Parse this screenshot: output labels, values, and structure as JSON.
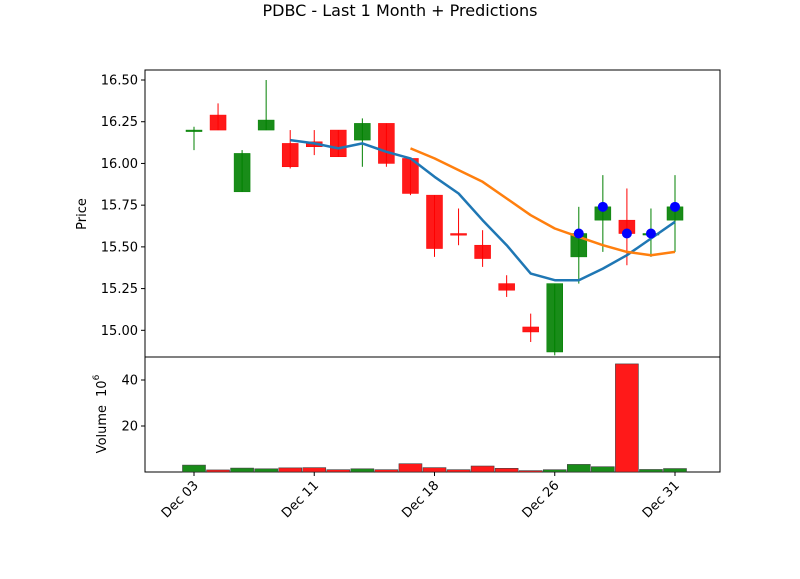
{
  "chart_data": {
    "type": "candlestick",
    "title": "PDBC - Last 1 Month + Predictions",
    "ylabel": "Price",
    "volume_label": "Volume",
    "volume_multiplier": "10",
    "volume_exponent": "6",
    "ylim": [
      14.84,
      16.56
    ],
    "volume_ylim": [
      0,
      50
    ],
    "y_ticks": [
      15.0,
      15.25,
      15.5,
      15.75,
      16.0,
      16.25,
      16.5
    ],
    "y_tick_labels": [
      "15.00",
      "15.25",
      "15.50",
      "15.75",
      "16.00",
      "16.25",
      "16.50"
    ],
    "volume_ticks": [
      20,
      40
    ],
    "volume_tick_labels": [
      "20",
      "40"
    ],
    "x_tick_labels": [
      "Dec 03",
      "Dec 11",
      "Dec 18",
      "Dec 26",
      "Dec 31"
    ],
    "x_tick_index": [
      0,
      5,
      10,
      15,
      20
    ],
    "colors": {
      "up": "#008000",
      "down": "#ff0000",
      "ma_short": "#1f77b4",
      "ma_long": "#ff7f0e",
      "prediction": "#0000ff"
    },
    "candles": [
      {
        "open": 16.2,
        "high": 16.22,
        "low": 16.08,
        "close": 16.2,
        "volume": 3.0
      },
      {
        "open": 16.29,
        "high": 16.36,
        "low": 16.2,
        "close": 16.2,
        "volume": 0.9
      },
      {
        "open": 15.83,
        "high": 16.08,
        "low": 15.83,
        "close": 16.06,
        "volume": 1.7
      },
      {
        "open": 16.2,
        "high": 16.5,
        "low": 16.2,
        "close": 16.26,
        "volume": 1.4
      },
      {
        "open": 16.12,
        "high": 16.2,
        "low": 15.97,
        "close": 15.98,
        "volume": 1.8
      },
      {
        "open": 16.13,
        "high": 16.2,
        "low": 16.05,
        "close": 16.1,
        "volume": 1.9
      },
      {
        "open": 16.2,
        "high": 16.2,
        "low": 16.04,
        "close": 16.04,
        "volume": 1.0
      },
      {
        "open": 16.14,
        "high": 16.27,
        "low": 15.98,
        "close": 16.24,
        "volume": 1.4
      },
      {
        "open": 16.24,
        "high": 16.24,
        "low": 15.98,
        "close": 16.0,
        "volume": 1.0
      },
      {
        "open": 16.03,
        "high": 16.03,
        "low": 15.81,
        "close": 15.82,
        "volume": 3.6
      },
      {
        "open": 15.81,
        "high": 15.81,
        "low": 15.44,
        "close": 15.49,
        "volume": 1.9
      },
      {
        "open": 15.58,
        "high": 15.73,
        "low": 15.51,
        "close": 15.57,
        "volume": 1.0
      },
      {
        "open": 15.51,
        "high": 15.6,
        "low": 15.38,
        "close": 15.43,
        "volume": 2.6
      },
      {
        "open": 15.28,
        "high": 15.33,
        "low": 15.2,
        "close": 15.24,
        "volume": 1.6
      },
      {
        "open": 15.02,
        "high": 15.1,
        "low": 14.93,
        "close": 14.99,
        "volume": 0.6
      },
      {
        "open": 14.87,
        "high": 15.28,
        "low": 14.85,
        "close": 15.28,
        "volume": 1.0
      },
      {
        "open": 15.44,
        "high": 15.74,
        "low": 15.28,
        "close": 15.58,
        "volume": 3.3
      },
      {
        "open": 15.66,
        "high": 15.93,
        "low": 15.47,
        "close": 15.74,
        "volume": 2.3
      },
      {
        "open": 15.66,
        "high": 15.85,
        "low": 15.39,
        "close": 15.58,
        "volume": 47.0
      },
      {
        "open": 15.58,
        "high": 15.73,
        "low": 15.44,
        "close": 15.58,
        "volume": 1.1
      },
      {
        "open": 15.66,
        "high": 15.93,
        "low": 15.47,
        "close": 15.74,
        "volume": 1.5
      }
    ],
    "ma_short": [
      null,
      null,
      null,
      null,
      16.14,
      16.12,
      16.09,
      16.12,
      16.07,
      16.03,
      15.92,
      15.82,
      15.66,
      15.51,
      15.34,
      15.3,
      15.3,
      15.37,
      15.45,
      15.55,
      15.65
    ],
    "ma_long": [
      null,
      null,
      null,
      null,
      null,
      null,
      null,
      null,
      null,
      16.09,
      16.03,
      15.96,
      15.89,
      15.79,
      15.69,
      15.61,
      15.56,
      15.51,
      15.47,
      15.45,
      15.47
    ],
    "predictions": [
      {
        "index": 16,
        "value": 15.58
      },
      {
        "index": 17,
        "value": 15.74
      },
      {
        "index": 18,
        "value": 15.58
      },
      {
        "index": 19,
        "value": 15.58
      },
      {
        "index": 20,
        "value": 15.74
      }
    ]
  }
}
